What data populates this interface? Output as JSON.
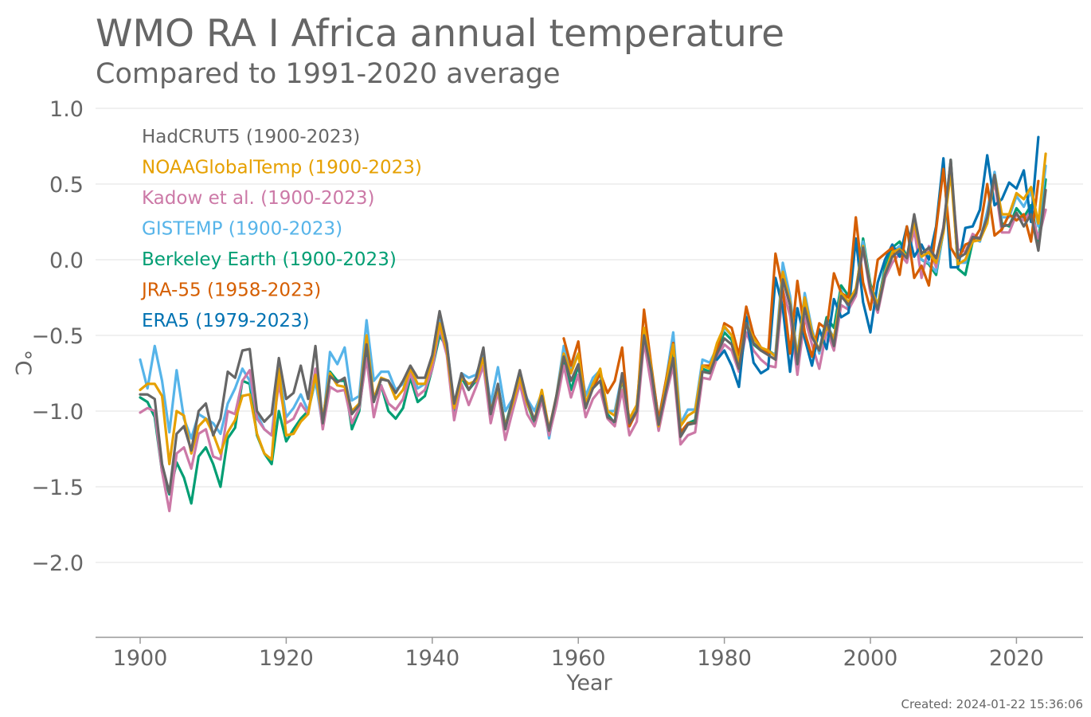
{
  "chart_data": {
    "type": "line",
    "title": "WMO RA I Africa annual temperature",
    "subtitle": "Compared to 1991-2020 average",
    "xlabel": "Year",
    "ylabel": "°C",
    "xlim": [
      1895,
      2030
    ],
    "ylim": [
      -2.5,
      1.0
    ],
    "x_ticks": [
      1900,
      1920,
      1940,
      1960,
      1980,
      2000,
      2020
    ],
    "x_tick_labels": [
      "1900",
      "1920",
      "1940",
      "1960",
      "1980",
      "2000",
      "2020"
    ],
    "y_ticks": [
      1.0,
      0.5,
      0.0,
      -0.5,
      -1.0,
      -1.5,
      -2.0
    ],
    "y_tick_labels": [
      "1.0",
      "0.5",
      "0.0",
      "−0.5",
      "−1.0",
      "−1.5",
      "−2.0"
    ],
    "grid": "horizontal",
    "legend_position": "top-left",
    "footer": "Created: 2024-01-22 15:36:06",
    "series": [
      {
        "name": "HadCRUT5 (1900-2023)",
        "color": "#666666",
        "start": 1900,
        "values": [
          -0.89,
          -0.89,
          -0.92,
          -1.35,
          -1.54,
          -1.15,
          -1.1,
          -1.26,
          -1.0,
          -0.95,
          -1.16,
          -1.05,
          -0.74,
          -0.78,
          -0.6,
          -0.59,
          -1.0,
          -1.07,
          -1.02,
          -0.65,
          -0.92,
          -0.88,
          -0.7,
          -0.92,
          -0.57,
          -1.08,
          -0.77,
          -0.81,
          -0.78,
          -1.02,
          -0.96,
          -0.56,
          -0.94,
          -0.79,
          -0.8,
          -0.88,
          -0.8,
          -0.7,
          -0.78,
          -0.78,
          -0.63,
          -0.34,
          -0.56,
          -0.95,
          -0.75,
          -0.86,
          -0.78,
          -0.58,
          -1.02,
          -0.82,
          -1.12,
          -0.92,
          -0.73,
          -0.93,
          -1.06,
          -0.9,
          -1.13,
          -0.9,
          -0.64,
          -0.8,
          -0.69,
          -0.98,
          -0.85,
          -0.8,
          -1.04,
          -1.07,
          -0.75,
          -1.08,
          -1.0,
          -0.5,
          -0.74,
          -1.09,
          -0.87,
          -0.65,
          -1.17,
          -1.09,
          -1.08,
          -0.74,
          -0.75,
          -0.62,
          -0.52,
          -0.56,
          -0.72,
          -0.42,
          -0.55,
          -0.6,
          -0.63,
          -0.66,
          -0.13,
          -0.3,
          -0.69,
          -0.32,
          -0.51,
          -0.6,
          -0.4,
          -0.57,
          -0.24,
          -0.3,
          -0.22,
          0.08,
          -0.19,
          -0.33,
          -0.1,
          0.02,
          0.06,
          0.01,
          0.3,
          0.04,
          0.08,
          0.01,
          0.21,
          0.66,
          0.01,
          0.04,
          0.15,
          0.14,
          0.28,
          0.56,
          0.22,
          0.23,
          0.31,
          0.22,
          0.3,
          0.06,
          0.46
        ]
      },
      {
        "name": "NOAAGlobalTemp (1900-2023)",
        "color": "#E6A000",
        "start": 1900,
        "values": [
          -0.86,
          -0.82,
          -0.82,
          -0.9,
          -1.35,
          -1.0,
          -1.03,
          -1.28,
          -1.1,
          -1.05,
          -1.15,
          -1.28,
          -1.14,
          -1.06,
          -0.9,
          -0.89,
          -1.15,
          -1.28,
          -1.32,
          -0.72,
          -1.16,
          -1.15,
          -1.07,
          -1.02,
          -0.76,
          -1.05,
          -0.75,
          -0.83,
          -0.84,
          -1.0,
          -0.95,
          -0.5,
          -0.92,
          -0.78,
          -0.8,
          -0.92,
          -0.86,
          -0.72,
          -0.82,
          -0.82,
          -0.67,
          -0.42,
          -0.6,
          -0.98,
          -0.78,
          -0.82,
          -0.8,
          -0.65,
          -1.0,
          -0.85,
          -1.1,
          -0.95,
          -0.78,
          -0.95,
          -1.06,
          -0.86,
          -1.12,
          -0.9,
          -0.62,
          -0.75,
          -0.62,
          -0.95,
          -0.82,
          -0.72,
          -1.0,
          -1.03,
          -0.78,
          -1.05,
          -0.96,
          -0.45,
          -0.71,
          -1.1,
          -0.82,
          -0.56,
          -1.1,
          -1.03,
          -1.0,
          -0.7,
          -0.72,
          -0.55,
          -0.44,
          -0.5,
          -0.68,
          -0.42,
          -0.52,
          -0.58,
          -0.6,
          -0.64,
          -0.08,
          -0.28,
          -0.65,
          -0.25,
          -0.48,
          -0.6,
          -0.44,
          -0.52,
          -0.22,
          -0.28,
          -0.19,
          0.09,
          -0.18,
          -0.3,
          -0.09,
          0.05,
          0.07,
          0.02,
          0.25,
          0.02,
          0.05,
          -0.02,
          0.18,
          0.58,
          -0.03,
          0.0,
          0.12,
          0.13,
          0.24,
          0.56,
          0.3,
          0.3,
          0.44,
          0.4,
          0.48,
          0.24,
          0.7
        ]
      },
      {
        "name": "Kadow et al. (1900-2023)",
        "color": "#CC79A7",
        "start": 1900,
        "values": [
          -1.01,
          -0.98,
          -1.0,
          -1.4,
          -1.66,
          -1.28,
          -1.24,
          -1.38,
          -1.15,
          -1.12,
          -1.3,
          -1.32,
          -1.0,
          -1.02,
          -0.8,
          -0.73,
          -1.05,
          -1.12,
          -1.16,
          -0.82,
          -1.08,
          -1.05,
          -0.95,
          -1.02,
          -0.72,
          -1.12,
          -0.84,
          -0.87,
          -0.86,
          -1.08,
          -0.98,
          -0.65,
          -1.04,
          -0.83,
          -0.95,
          -0.99,
          -0.92,
          -0.75,
          -0.9,
          -0.86,
          -0.72,
          -0.45,
          -0.63,
          -1.06,
          -0.82,
          -0.96,
          -0.84,
          -0.7,
          -1.08,
          -0.87,
          -1.19,
          -1.0,
          -0.82,
          -1.02,
          -1.1,
          -0.93,
          -1.16,
          -0.96,
          -0.7,
          -0.91,
          -0.76,
          -1.04,
          -0.92,
          -0.86,
          -1.05,
          -1.1,
          -0.86,
          -1.16,
          -1.07,
          -0.54,
          -0.83,
          -1.13,
          -0.9,
          -0.7,
          -1.22,
          -1.16,
          -1.14,
          -0.78,
          -0.79,
          -0.65,
          -0.56,
          -0.6,
          -0.74,
          -0.48,
          -0.6,
          -0.66,
          -0.7,
          -0.71,
          -0.2,
          -0.37,
          -0.76,
          -0.38,
          -0.56,
          -0.72,
          -0.47,
          -0.6,
          -0.3,
          -0.33,
          -0.24,
          0.07,
          -0.22,
          -0.35,
          -0.12,
          -0.02,
          0.04,
          -0.02,
          0.2,
          -0.12,
          0.09,
          -0.05,
          0.22,
          0.58,
          0.07,
          0.05,
          0.17,
          0.14,
          0.26,
          0.52,
          0.18,
          0.18,
          0.3,
          0.26,
          0.32,
          0.14,
          0.33
        ]
      },
      {
        "name": "GISTEMP (1900-2023)",
        "color": "#56B4E9",
        "start": 1900,
        "values": [
          -0.66,
          -0.85,
          -0.57,
          -0.8,
          -1.14,
          -0.73,
          -1.05,
          -1.18,
          -1.02,
          -1.05,
          -1.08,
          -1.15,
          -0.95,
          -0.85,
          -0.72,
          -0.8,
          -1.02,
          -1.12,
          -1.16,
          -0.73,
          -1.04,
          -0.98,
          -0.89,
          -1.0,
          -0.8,
          -1.1,
          -0.61,
          -0.69,
          -0.58,
          -0.93,
          -0.9,
          -0.4,
          -0.8,
          -0.74,
          -0.74,
          -0.86,
          -0.82,
          -0.72,
          -0.85,
          -0.82,
          -0.68,
          -0.4,
          -0.55,
          -0.98,
          -0.75,
          -0.78,
          -0.76,
          -0.63,
          -0.95,
          -0.71,
          -1.0,
          -0.92,
          -0.78,
          -0.92,
          -1.0,
          -0.88,
          -1.18,
          -0.9,
          -0.57,
          -0.72,
          -0.62,
          -0.9,
          -0.78,
          -0.73,
          -1.0,
          -1.0,
          -0.76,
          -1.1,
          -0.98,
          -0.47,
          -0.72,
          -1.05,
          -0.8,
          -0.48,
          -1.08,
          -0.99,
          -0.99,
          -0.66,
          -0.68,
          -0.58,
          -0.45,
          -0.5,
          -0.7,
          -0.36,
          -0.52,
          -0.58,
          -0.62,
          -0.62,
          -0.02,
          -0.24,
          -0.64,
          -0.22,
          -0.46,
          -0.62,
          -0.42,
          -0.52,
          -0.2,
          -0.32,
          -0.22,
          0.12,
          -0.18,
          -0.3,
          -0.08,
          0.05,
          0.09,
          0.01,
          0.25,
          0.0,
          -0.02,
          -0.08,
          0.19,
          0.62,
          -0.02,
          -0.02,
          0.14,
          0.12,
          0.32,
          0.58,
          0.28,
          0.28,
          0.42,
          0.35,
          0.45,
          0.22,
          0.62
        ]
      },
      {
        "name": "Berkeley Earth (1900-2023)",
        "color": "#009E73",
        "start": 1900,
        "values": [
          -0.91,
          -0.94,
          -1.04,
          -1.4,
          -1.55,
          -1.34,
          -1.44,
          -1.61,
          -1.3,
          -1.24,
          -1.35,
          -1.5,
          -1.18,
          -1.11,
          -0.8,
          -0.82,
          -1.16,
          -1.28,
          -1.35,
          -1.0,
          -1.2,
          -1.12,
          -1.05,
          -1.0,
          -0.8,
          -1.05,
          -0.74,
          -0.8,
          -0.8,
          -1.12,
          -1.0,
          -0.6,
          -0.92,
          -0.83,
          -1.0,
          -1.05,
          -0.98,
          -0.78,
          -0.94,
          -0.9,
          -0.72,
          -0.5,
          -0.58,
          -1.02,
          -0.78,
          -0.86,
          -0.8,
          -0.62,
          -1.0,
          -0.83,
          -1.1,
          -0.92,
          -0.76,
          -0.95,
          -1.08,
          -0.89,
          -1.16,
          -0.92,
          -0.65,
          -0.86,
          -0.7,
          -0.98,
          -0.84,
          -0.75,
          -1.02,
          -1.08,
          -0.78,
          -1.1,
          -1.0,
          -0.5,
          -0.75,
          -1.08,
          -0.85,
          -0.62,
          -1.16,
          -1.08,
          -1.06,
          -0.72,
          -0.74,
          -0.6,
          -0.48,
          -0.53,
          -0.7,
          -0.4,
          -0.56,
          -0.6,
          -0.6,
          -0.63,
          -0.12,
          -0.3,
          -0.7,
          -0.26,
          -0.5,
          -0.6,
          -0.38,
          -0.45,
          -0.17,
          -0.24,
          -0.22,
          0.14,
          -0.16,
          -0.3,
          -0.05,
          0.08,
          0.12,
          0.02,
          0.24,
          0.0,
          -0.03,
          -0.1,
          0.19,
          0.66,
          -0.06,
          -0.1,
          0.12,
          0.14,
          0.28,
          0.55,
          0.24,
          0.22,
          0.34,
          0.28,
          0.36,
          0.12,
          0.53
        ]
      },
      {
        "name": "JRA-55 (1958-2023)",
        "color": "#D55E00",
        "start": 1958,
        "values": [
          -0.52,
          -0.7,
          -0.54,
          -0.95,
          -0.85,
          -0.75,
          -0.88,
          -0.8,
          -0.58,
          -1.1,
          -1.0,
          -0.33,
          -0.7,
          -1.06,
          -0.8,
          -0.55,
          -1.14,
          -1.08,
          -1.08,
          -0.7,
          -0.7,
          -0.6,
          -0.42,
          -0.45,
          -0.63,
          -0.31,
          -0.5,
          -0.58,
          -0.62,
          0.04,
          -0.2,
          -0.62,
          -0.14,
          -0.48,
          -0.64,
          -0.42,
          -0.46,
          -0.09,
          -0.22,
          -0.25,
          0.28,
          -0.15,
          -0.33,
          0.0,
          0.04,
          0.08,
          -0.1,
          0.22,
          -0.12,
          -0.04,
          -0.17,
          0.2,
          0.6,
          0.08,
          0.0,
          0.1,
          0.12,
          0.2,
          0.5,
          0.16,
          0.2,
          0.3,
          0.26,
          0.3,
          0.12,
          0.52
        ]
      },
      {
        "name": "ERA5 (1979-2023)",
        "color": "#0072B2",
        "start": 1979,
        "values": [
          -0.66,
          -0.6,
          -0.7,
          -0.84,
          -0.38,
          -0.68,
          -0.75,
          -0.72,
          -0.12,
          -0.32,
          -0.74,
          -0.32,
          -0.52,
          -0.7,
          -0.46,
          -0.59,
          -0.26,
          -0.38,
          -0.35,
          0.14,
          -0.28,
          -0.48,
          -0.15,
          0.0,
          0.1,
          0.02,
          0.22,
          0.02,
          0.1,
          0.0,
          0.22,
          0.67,
          -0.05,
          -0.05,
          0.21,
          0.22,
          0.33,
          0.69,
          0.36,
          0.4,
          0.51,
          0.47,
          0.59,
          0.25,
          0.81
        ]
      }
    ]
  }
}
